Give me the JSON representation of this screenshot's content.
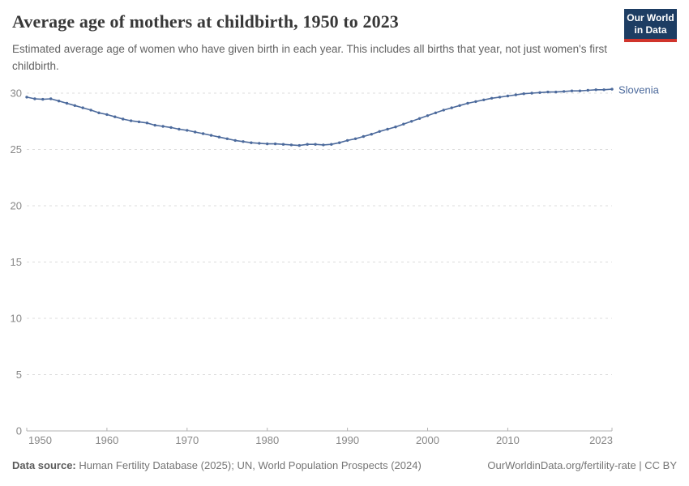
{
  "chart_data": {
    "type": "line",
    "title": "Average age of mothers at childbirth, 1950 to 2023",
    "subtitle": "Estimated average age of women who have given birth in each year. This includes all births that year, not just women's first childbirth.",
    "entity_label": "Slovenia",
    "xlim": [
      1950,
      2023
    ],
    "ylim": [
      0,
      30
    ],
    "xticks": [
      1950,
      1960,
      1970,
      1980,
      1990,
      2000,
      2010,
      2023
    ],
    "yticks": [
      0,
      5,
      10,
      15,
      20,
      25,
      30
    ],
    "grid": "horizontal-dashed",
    "legend_position": "end-of-line",
    "series": [
      {
        "name": "Slovenia",
        "color": "#4C6A9C",
        "years": [
          1950,
          1951,
          1952,
          1953,
          1954,
          1955,
          1956,
          1957,
          1958,
          1959,
          1960,
          1961,
          1962,
          1963,
          1964,
          1965,
          1966,
          1967,
          1968,
          1969,
          1970,
          1971,
          1972,
          1973,
          1974,
          1975,
          1976,
          1977,
          1978,
          1979,
          1980,
          1981,
          1982,
          1983,
          1984,
          1985,
          1986,
          1987,
          1988,
          1989,
          1990,
          1991,
          1992,
          1993,
          1994,
          1995,
          1996,
          1997,
          1998,
          1999,
          2000,
          2001,
          2002,
          2003,
          2004,
          2005,
          2006,
          2007,
          2008,
          2009,
          2010,
          2011,
          2012,
          2013,
          2014,
          2015,
          2016,
          2017,
          2018,
          2019,
          2020,
          2021,
          2022,
          2023
        ],
        "values": [
          29.65,
          29.5,
          29.45,
          29.5,
          29.3,
          29.1,
          28.9,
          28.7,
          28.5,
          28.25,
          28.1,
          27.9,
          27.7,
          27.55,
          27.45,
          27.35,
          27.15,
          27.05,
          26.95,
          26.8,
          26.7,
          26.55,
          26.4,
          26.25,
          26.1,
          25.95,
          25.8,
          25.7,
          25.6,
          25.55,
          25.5,
          25.5,
          25.45,
          25.4,
          25.35,
          25.45,
          25.45,
          25.4,
          25.45,
          25.6,
          25.8,
          25.95,
          26.15,
          26.35,
          26.6,
          26.8,
          27.0,
          27.25,
          27.5,
          27.75,
          28.0,
          28.25,
          28.5,
          28.7,
          28.9,
          29.1,
          29.25,
          29.4,
          29.55,
          29.65,
          29.75,
          29.85,
          29.95,
          30.0,
          30.05,
          30.1,
          30.1,
          30.15,
          30.2,
          30.2,
          30.25,
          30.3,
          30.3,
          30.35
        ]
      }
    ]
  },
  "logo": {
    "line1": "Our World",
    "line2": "in Data"
  },
  "footer": {
    "source_label": "Data source:",
    "source_value": " Human Fertility Database (2025); UN, World Population Prospects (2024)",
    "license": "OurWorldinData.org/fertility-rate | CC BY"
  },
  "colors": {
    "line": "#4C6A9C",
    "logo_bg": "#1d3d63",
    "logo_accent": "#d0342c",
    "gridline": "#dcdcdc",
    "axis": "#b3b3b3",
    "tick_label": "#878787"
  }
}
